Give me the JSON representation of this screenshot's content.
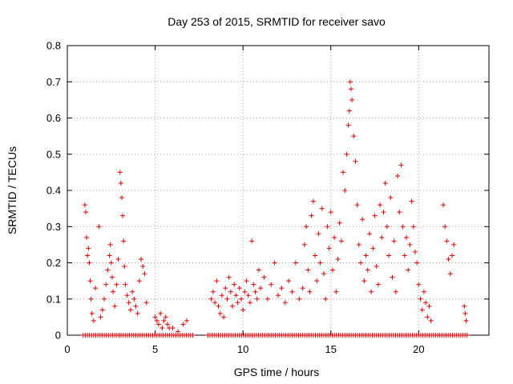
{
  "chart_data": {
    "type": "scatter",
    "title": "Day 253 of 2015, SRMTID for receiver savo",
    "xlabel": "GPS time / hours",
    "ylabel": "SRMTID / TECUs",
    "xlim": [
      0,
      24
    ],
    "ylim": [
      0,
      0.8
    ],
    "xticks": [
      "0",
      "5",
      "10",
      "15",
      "20"
    ],
    "xtick_values": [
      0,
      5,
      10,
      15,
      20
    ],
    "yticks": [
      "0",
      "0.1",
      "0.2",
      "0.3",
      "0.4",
      "0.5",
      "0.6",
      "0.7",
      "0.8"
    ],
    "ytick_values": [
      0,
      0.1,
      0.2,
      0.3,
      0.4,
      0.5,
      0.6,
      0.7,
      0.8
    ],
    "grid": true,
    "marker": "+",
    "color": "#e00000",
    "series": [
      {
        "name": "SRMTID",
        "points": [
          [
            1.0,
            0.36
          ],
          [
            1.05,
            0.34
          ],
          [
            1.1,
            0.27
          ],
          [
            1.15,
            0.22
          ],
          [
            1.2,
            0.24
          ],
          [
            1.25,
            0.2
          ],
          [
            1.3,
            0.15
          ],
          [
            1.35,
            0.1
          ],
          [
            1.4,
            0.06
          ],
          [
            1.5,
            0.04
          ],
          [
            1.6,
            0.13
          ],
          [
            1.8,
            0.3
          ],
          [
            1.9,
            0.05
          ],
          [
            2.0,
            0.07
          ],
          [
            2.1,
            0.1
          ],
          [
            2.2,
            0.14
          ],
          [
            2.3,
            0.18
          ],
          [
            2.4,
            0.22
          ],
          [
            2.45,
            0.25
          ],
          [
            2.5,
            0.2
          ],
          [
            2.55,
            0.16
          ],
          [
            2.6,
            0.12
          ],
          [
            2.7,
            0.08
          ],
          [
            2.8,
            0.14
          ],
          [
            2.9,
            0.21
          ],
          [
            3.0,
            0.45
          ],
          [
            3.05,
            0.42
          ],
          [
            3.1,
            0.38
          ],
          [
            3.15,
            0.33
          ],
          [
            3.2,
            0.26
          ],
          [
            3.25,
            0.19
          ],
          [
            3.3,
            0.14
          ],
          [
            3.4,
            0.11
          ],
          [
            3.5,
            0.09
          ],
          [
            3.6,
            0.07
          ],
          [
            3.7,
            0.12
          ],
          [
            3.8,
            0.1
          ],
          [
            3.9,
            0.08
          ],
          [
            4.0,
            0.06
          ],
          [
            4.1,
            0.15
          ],
          [
            4.2,
            0.21
          ],
          [
            4.3,
            0.19
          ],
          [
            4.4,
            0.17
          ],
          [
            4.5,
            0.09
          ],
          [
            5.0,
            0.05
          ],
          [
            5.1,
            0.04
          ],
          [
            5.2,
            0.03
          ],
          [
            5.3,
            0.06
          ],
          [
            5.4,
            0.02
          ],
          [
            5.5,
            0.04
          ],
          [
            5.6,
            0.05
          ],
          [
            5.7,
            0.03
          ],
          [
            5.8,
            0.02
          ],
          [
            6.0,
            0.02
          ],
          [
            6.3,
            0.01
          ],
          [
            6.6,
            0.03
          ],
          [
            6.8,
            0.04
          ],
          [
            8.2,
            0.1
          ],
          [
            8.3,
            0.12
          ],
          [
            8.4,
            0.09
          ],
          [
            8.5,
            0.15
          ],
          [
            8.6,
            0.08
          ],
          [
            8.7,
            0.06
          ],
          [
            8.8,
            0.11
          ],
          [
            8.9,
            0.05
          ],
          [
            9.0,
            0.13
          ],
          [
            9.1,
            0.1
          ],
          [
            9.2,
            0.16
          ],
          [
            9.3,
            0.12
          ],
          [
            9.4,
            0.08
          ],
          [
            9.5,
            0.14
          ],
          [
            9.6,
            0.11
          ],
          [
            9.7,
            0.09
          ],
          [
            9.8,
            0.13
          ],
          [
            9.9,
            0.1
          ],
          [
            10.0,
            0.07
          ],
          [
            10.1,
            0.12
          ],
          [
            10.2,
            0.15
          ],
          [
            10.3,
            0.11
          ],
          [
            10.4,
            0.09
          ],
          [
            10.5,
            0.26
          ],
          [
            10.6,
            0.14
          ],
          [
            10.7,
            0.12
          ],
          [
            10.8,
            0.1
          ],
          [
            10.9,
            0.18
          ],
          [
            11.0,
            0.13
          ],
          [
            11.2,
            0.16
          ],
          [
            11.4,
            0.1
          ],
          [
            11.6,
            0.14
          ],
          [
            11.8,
            0.2
          ],
          [
            12.0,
            0.11
          ],
          [
            12.2,
            0.13
          ],
          [
            12.4,
            0.09
          ],
          [
            12.6,
            0.15
          ],
          [
            12.8,
            0.12
          ],
          [
            13.0,
            0.2
          ],
          [
            13.2,
            0.1
          ],
          [
            13.4,
            0.13
          ],
          [
            13.5,
            0.25
          ],
          [
            13.6,
            0.3
          ],
          [
            13.7,
            0.18
          ],
          [
            13.8,
            0.12
          ],
          [
            13.9,
            0.33
          ],
          [
            14.0,
            0.37
          ],
          [
            14.1,
            0.22
          ],
          [
            14.2,
            0.15
          ],
          [
            14.3,
            0.28
          ],
          [
            14.4,
            0.2
          ],
          [
            14.5,
            0.35
          ],
          [
            14.6,
            0.17
          ],
          [
            14.7,
            0.1
          ],
          [
            14.8,
            0.3
          ],
          [
            14.9,
            0.24
          ],
          [
            15.0,
            0.34
          ],
          [
            15.1,
            0.18
          ],
          [
            15.2,
            0.27
          ],
          [
            15.3,
            0.12
          ],
          [
            15.4,
            0.21
          ],
          [
            15.5,
            0.31
          ],
          [
            15.6,
            0.26
          ],
          [
            15.7,
            0.45
          ],
          [
            15.8,
            0.4
          ],
          [
            15.9,
            0.5
          ],
          [
            16.0,
            0.58
          ],
          [
            16.05,
            0.62
          ],
          [
            16.1,
            0.7
          ],
          [
            16.15,
            0.68
          ],
          [
            16.2,
            0.65
          ],
          [
            16.3,
            0.55
          ],
          [
            16.4,
            0.48
          ],
          [
            16.5,
            0.36
          ],
          [
            16.6,
            0.25
          ],
          [
            16.7,
            0.2
          ],
          [
            16.8,
            0.32
          ],
          [
            16.9,
            0.15
          ],
          [
            17.0,
            0.22
          ],
          [
            17.1,
            0.18
          ],
          [
            17.2,
            0.28
          ],
          [
            17.3,
            0.12
          ],
          [
            17.4,
            0.24
          ],
          [
            17.5,
            0.33
          ],
          [
            17.6,
            0.19
          ],
          [
            17.7,
            0.14
          ],
          [
            17.8,
            0.36
          ],
          [
            17.9,
            0.27
          ],
          [
            18.0,
            0.34
          ],
          [
            18.1,
            0.42
          ],
          [
            18.2,
            0.3
          ],
          [
            18.3,
            0.22
          ],
          [
            18.4,
            0.38
          ],
          [
            18.5,
            0.16
          ],
          [
            18.6,
            0.26
          ],
          [
            18.7,
            0.12
          ],
          [
            18.8,
            0.44
          ],
          [
            18.9,
            0.34
          ],
          [
            19.0,
            0.47
          ],
          [
            19.1,
            0.3
          ],
          [
            19.2,
            0.22
          ],
          [
            19.3,
            0.27
          ],
          [
            19.4,
            0.18
          ],
          [
            19.5,
            0.25
          ],
          [
            19.6,
            0.37
          ],
          [
            19.7,
            0.3
          ],
          [
            19.8,
            0.23
          ],
          [
            19.9,
            0.2
          ],
          [
            20.0,
            0.14
          ],
          [
            20.1,
            0.1
          ],
          [
            20.2,
            0.07
          ],
          [
            20.3,
            0.12
          ],
          [
            20.4,
            0.09
          ],
          [
            20.5,
            0.05
          ],
          [
            20.6,
            0.08
          ],
          [
            20.7,
            0.04
          ],
          [
            21.4,
            0.36
          ],
          [
            21.5,
            0.3
          ],
          [
            21.6,
            0.26
          ],
          [
            21.7,
            0.21
          ],
          [
            21.8,
            0.17
          ],
          [
            21.9,
            0.22
          ],
          [
            22.0,
            0.25
          ],
          [
            22.6,
            0.08
          ],
          [
            22.65,
            0.06
          ],
          [
            22.7,
            0.04
          ]
        ]
      }
    ],
    "zero_band": [
      [
        0.9,
        7.2
      ],
      [
        8.0,
        22.8
      ]
    ]
  }
}
